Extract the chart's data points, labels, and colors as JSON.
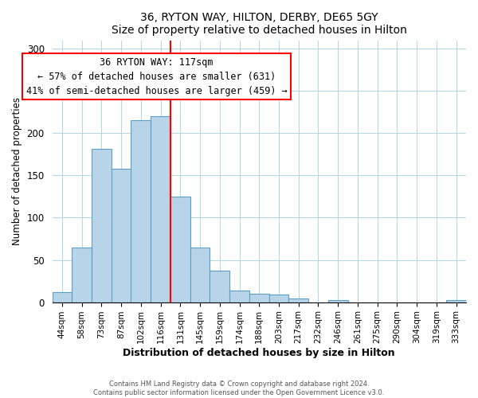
{
  "title": "36, RYTON WAY, HILTON, DERBY, DE65 5GY",
  "subtitle": "Size of property relative to detached houses in Hilton",
  "xlabel": "Distribution of detached houses by size in Hilton",
  "ylabel": "Number of detached properties",
  "categories": [
    "44sqm",
    "58sqm",
    "73sqm",
    "87sqm",
    "102sqm",
    "116sqm",
    "131sqm",
    "145sqm",
    "159sqm",
    "174sqm",
    "188sqm",
    "203sqm",
    "217sqm",
    "232sqm",
    "246sqm",
    "261sqm",
    "275sqm",
    "290sqm",
    "304sqm",
    "319sqm",
    "333sqm"
  ],
  "values": [
    12,
    65,
    181,
    158,
    215,
    220,
    125,
    65,
    37,
    14,
    10,
    9,
    4,
    0,
    2,
    0,
    0,
    0,
    0,
    0,
    2
  ],
  "bar_color": "#b8d4e8",
  "bar_edge_color": "#5b9ec9",
  "vline_x": 5.5,
  "vline_color": "red",
  "annotation_title": "36 RYTON WAY: 117sqm",
  "annotation_line1": "← 57% of detached houses are smaller (631)",
  "annotation_line2": "41% of semi-detached houses are larger (459) →",
  "annotation_box_color": "white",
  "annotation_box_edge_color": "red",
  "ylim": [
    0,
    310
  ],
  "yticks": [
    0,
    50,
    100,
    150,
    200,
    250,
    300
  ],
  "footer1": "Contains HM Land Registry data © Crown copyright and database right 2024.",
  "footer2": "Contains public sector information licensed under the Open Government Licence v3.0."
}
